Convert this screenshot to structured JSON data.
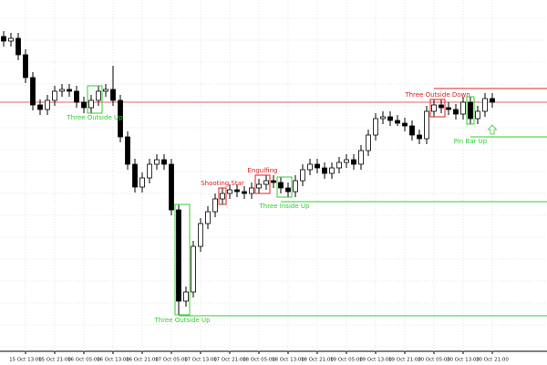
{
  "chart_data": {
    "type": "candlestick",
    "xlim": [
      -0.5,
      74.5
    ],
    "ylim": [
      0,
      385
    ],
    "xticks": [
      {
        "value": 3,
        "label": "15 Oct 13:00"
      },
      {
        "value": 7,
        "label": "15 Oct 21:00"
      },
      {
        "value": 11,
        "label": "16 Oct 05:00"
      },
      {
        "value": 15,
        "label": "16 Oct 13:00"
      },
      {
        "value": 19,
        "label": "16 Oct 21:00"
      },
      {
        "value": 23,
        "label": "17 Oct 05:00"
      },
      {
        "value": 27,
        "label": "17 Oct 13:00"
      },
      {
        "value": 31,
        "label": "17 Oct 21:00"
      },
      {
        "value": 35,
        "label": "18 Oct 05:00"
      },
      {
        "value": 39,
        "label": "18 Oct 13:00"
      },
      {
        "value": 43,
        "label": "18 Oct 21:00"
      },
      {
        "value": 47,
        "label": "19 Oct 05:00"
      },
      {
        "value": 51,
        "label": "19 Oct 13:00"
      },
      {
        "value": 55,
        "label": "19 Oct 21:00"
      },
      {
        "value": 59,
        "label": "20 Oct 05:00"
      },
      {
        "value": 63,
        "label": "20 Oct 13:00"
      },
      {
        "value": 67,
        "label": "20 Oct 21:00"
      }
    ],
    "grid": true,
    "up_color": "#ffffff",
    "down_color": "#000000",
    "open": [
      345,
      340,
      343,
      325,
      300,
      270,
      265,
      275,
      285,
      287,
      285,
      273,
      267,
      275,
      285,
      287,
      275,
      235,
      205,
      180,
      190,
      205,
      210,
      205,
      155,
      55,
      65,
      115,
      140,
      153,
      167,
      173,
      177,
      175,
      173,
      179,
      183,
      187,
      185,
      179,
      175,
      187,
      199,
      205,
      201,
      195,
      201,
      207,
      210,
      205,
      220,
      237,
      255,
      257,
      253,
      250,
      247,
      237,
      233,
      263,
      270,
      267,
      265,
      260,
      273,
      255,
      263,
      277
    ],
    "high": [
      351,
      349,
      349,
      331,
      306,
      276,
      281,
      291,
      293,
      293,
      291,
      279,
      281,
      291,
      293,
      313,
      281,
      241,
      211,
      196,
      211,
      216,
      216,
      211,
      161,
      71,
      121,
      146,
      159,
      173,
      179,
      183,
      183,
      181,
      185,
      189,
      193,
      193,
      191,
      185,
      193,
      205,
      211,
      211,
      207,
      207,
      213,
      216,
      216,
      226,
      243,
      261,
      263,
      263,
      259,
      256,
      253,
      243,
      269,
      276,
      276,
      273,
      271,
      279,
      279,
      269,
      283,
      283
    ],
    "low": [
      334,
      334,
      319,
      294,
      264,
      259,
      259,
      269,
      279,
      279,
      267,
      261,
      261,
      269,
      279,
      269,
      229,
      199,
      174,
      174,
      184,
      199,
      199,
      149,
      40,
      49,
      59,
      109,
      134,
      147,
      161,
      167,
      169,
      167,
      167,
      173,
      177,
      179,
      173,
      169,
      169,
      181,
      193,
      195,
      189,
      189,
      195,
      201,
      199,
      199,
      214,
      231,
      249,
      247,
      247,
      241,
      231,
      227,
      227,
      257,
      261,
      259,
      254,
      254,
      249,
      249,
      257,
      267
    ],
    "close": [
      340,
      343,
      325,
      300,
      270,
      265,
      275,
      285,
      287,
      285,
      273,
      267,
      275,
      285,
      287,
      275,
      235,
      205,
      180,
      190,
      205,
      210,
      205,
      155,
      55,
      65,
      115,
      140,
      153,
      167,
      173,
      177,
      175,
      173,
      179,
      183,
      187,
      185,
      179,
      175,
      187,
      199,
      205,
      201,
      195,
      201,
      207,
      210,
      205,
      220,
      237,
      255,
      257,
      253,
      250,
      247,
      237,
      233,
      263,
      270,
      267,
      265,
      260,
      273,
      255,
      263,
      277,
      273
    ],
    "hlines": [
      {
        "value": 273,
        "color": "#e06666"
      }
    ],
    "patterns": [
      {
        "name": "Three Outside Up",
        "color": "#33cc33",
        "from": 12,
        "to": 13,
        "label_side": "below"
      },
      {
        "name": "Three Outside Up",
        "color": "#33cc33",
        "from": 24,
        "to": 25,
        "label_side": "below",
        "level": 39
      },
      {
        "name": "Shooting Star",
        "color": "#e02020",
        "from": 30,
        "to": 30,
        "label_side": "above"
      },
      {
        "name": "Engulfing",
        "color": "#e02020",
        "from": 35,
        "to": 36,
        "label_side": "above"
      },
      {
        "name": "Three Inside Up",
        "color": "#33cc33",
        "from": 38,
        "to": 39,
        "label_side": "below",
        "level": 164
      },
      {
        "name": "Three Outside Down",
        "color": "#e02020",
        "from": 59,
        "to": 60,
        "label_side": "above",
        "level": 288
      },
      {
        "name": "Pin Bar Up",
        "color": "#33cc33",
        "from": 64,
        "to": 64,
        "label_side": "below",
        "level": 235
      }
    ]
  }
}
